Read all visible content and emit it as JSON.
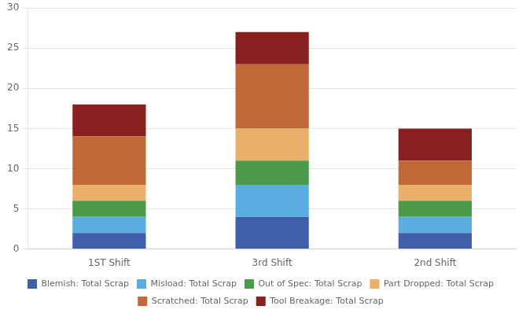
{
  "chart_data": {
    "type": "bar",
    "stacked": true,
    "categories": [
      "1ST Shift",
      "3rd Shift",
      "2nd Shift"
    ],
    "series": [
      {
        "name": "Blemish: Total Scrap",
        "color": "#3f5faa",
        "values": [
          2,
          4,
          2
        ]
      },
      {
        "name": "Misload: Total Scrap",
        "color": "#5aade0",
        "values": [
          2,
          4,
          2
        ]
      },
      {
        "name": "Out of Spec: Total Scrap",
        "color": "#4a9a4a",
        "values": [
          2,
          3,
          2
        ]
      },
      {
        "name": "Part Dropped: Total Scrap",
        "color": "#e8b06a",
        "values": [
          2,
          4,
          2
        ]
      },
      {
        "name": "Scratched: Total Scrap",
        "color": "#c06838",
        "values": [
          6,
          8,
          3
        ]
      },
      {
        "name": "Tool Breakage: Total Scrap",
        "color": "#892020",
        "values": [
          4,
          4,
          4
        ]
      }
    ],
    "ylim": [
      0,
      30
    ],
    "yticks": [
      0,
      5,
      10,
      15,
      20,
      25,
      30
    ],
    "grid": true,
    "legend": "bottom"
  }
}
